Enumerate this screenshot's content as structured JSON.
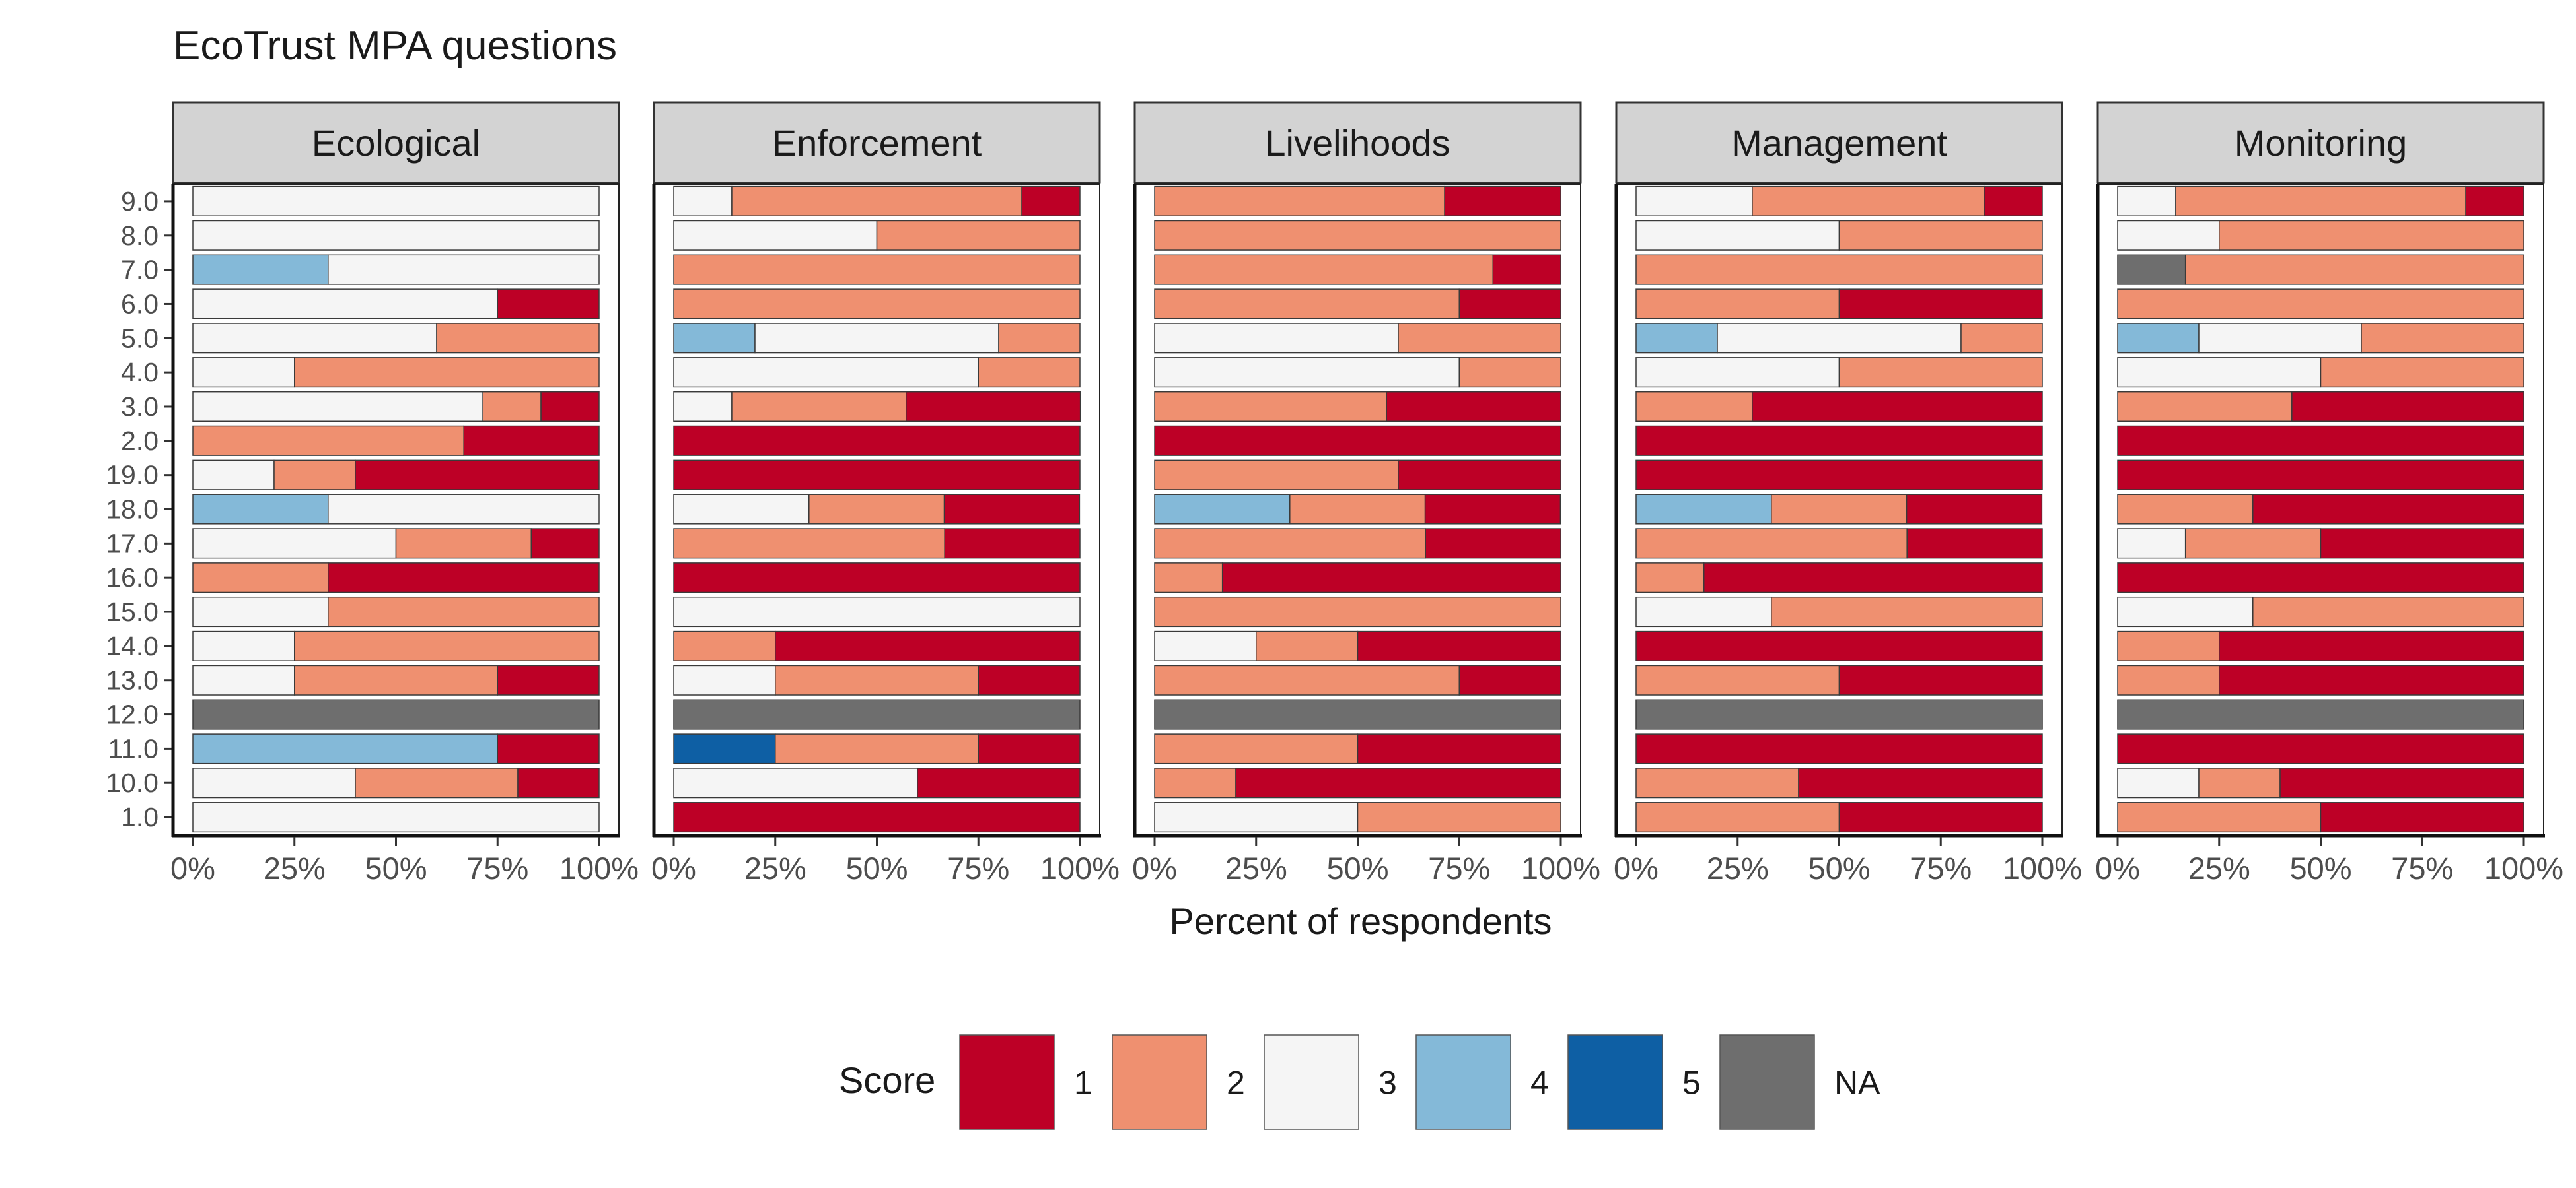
{
  "chart_data": {
    "type": "bar",
    "orientation": "horizontal-stacked-percent",
    "title": "EcoTrust MPA questions",
    "xlabel": "Percent of respondents",
    "ylabel": "",
    "xlim": [
      0,
      100
    ],
    "x_ticks": [
      "0%",
      "25%",
      "50%",
      "75%",
      "100%"
    ],
    "questions": [
      "9.0",
      "8.0",
      "7.0",
      "6.0",
      "5.0",
      "4.0",
      "3.0",
      "2.0",
      "19.0",
      "18.0",
      "17.0",
      "16.0",
      "15.0",
      "14.0",
      "13.0",
      "12.0",
      "11.0",
      "10.0",
      "1.0"
    ],
    "legend": {
      "title": "Score",
      "placement": "bottom",
      "entries": [
        {
          "key": "1",
          "label": "1",
          "color": "#bd0026"
        },
        {
          "key": "2",
          "label": "2",
          "color": "#ef9070"
        },
        {
          "key": "3",
          "label": "3",
          "color": "#f5f5f5"
        },
        {
          "key": "4",
          "label": "4",
          "color": "#84b9d8"
        },
        {
          "key": "5",
          "label": "5",
          "color": "#0e5fa4"
        },
        {
          "key": "NA",
          "label": "NA",
          "color": "#6e6e6e"
        }
      ]
    },
    "panels": [
      {
        "name": "Ecological",
        "rows": [
          {
            "q": "9.0",
            "s3": 100
          },
          {
            "q": "8.0",
            "s3": 100
          },
          {
            "q": "7.0",
            "s4": 33.3,
            "s3": 66.7
          },
          {
            "q": "6.0",
            "s3": 75,
            "s1": 25
          },
          {
            "q": "5.0",
            "s3": 60,
            "s2": 40
          },
          {
            "q": "4.0",
            "s3": 25,
            "s2": 75
          },
          {
            "q": "3.0",
            "s3": 71.4,
            "s2": 14.3,
            "s1": 14.3
          },
          {
            "q": "2.0",
            "s2": 66.7,
            "s1": 33.3
          },
          {
            "q": "19.0",
            "s3": 20,
            "s2": 20,
            "s1": 60
          },
          {
            "q": "18.0",
            "s4": 33.3,
            "s3": 66.7
          },
          {
            "q": "17.0",
            "s3": 50,
            "s2": 33.3,
            "s1": 16.7
          },
          {
            "q": "16.0",
            "s2": 33.3,
            "s1": 66.7
          },
          {
            "q": "15.0",
            "s3": 33.3,
            "s2": 66.7
          },
          {
            "q": "14.0",
            "s3": 25,
            "s2": 75
          },
          {
            "q": "13.0",
            "s3": 25,
            "s2": 50,
            "s1": 25
          },
          {
            "q": "12.0",
            "sNA": 100
          },
          {
            "q": "11.0",
            "s4": 75,
            "s1": 25
          },
          {
            "q": "10.0",
            "s3": 40,
            "s2": 40,
            "s1": 20
          },
          {
            "q": "1.0",
            "s3": 100
          }
        ]
      },
      {
        "name": "Enforcement",
        "rows": [
          {
            "q": "9.0",
            "s3": 14.3,
            "s2": 71.4,
            "s1": 14.3
          },
          {
            "q": "8.0",
            "s3": 50,
            "s2": 50
          },
          {
            "q": "7.0",
            "s2": 100
          },
          {
            "q": "6.0",
            "s2": 100
          },
          {
            "q": "5.0",
            "s4": 20,
            "s3": 60,
            "s2": 20
          },
          {
            "q": "4.0",
            "s3": 75,
            "s2": 25
          },
          {
            "q": "3.0",
            "s3": 14.3,
            "s2": 42.9,
            "s1": 42.9
          },
          {
            "q": "2.0",
            "s1": 100
          },
          {
            "q": "19.0",
            "s1": 100
          },
          {
            "q": "18.0",
            "s3": 33.3,
            "s2": 33.3,
            "s1": 33.3
          },
          {
            "q": "17.0",
            "s2": 66.7,
            "s1": 33.3
          },
          {
            "q": "16.0",
            "s1": 100
          },
          {
            "q": "15.0",
            "s3": 100
          },
          {
            "q": "14.0",
            "s2": 25,
            "s1": 75
          },
          {
            "q": "13.0",
            "s3": 25,
            "s2": 50,
            "s1": 25
          },
          {
            "q": "12.0",
            "sNA": 100
          },
          {
            "q": "11.0",
            "s5": 25,
            "s2": 50,
            "s1": 25
          },
          {
            "q": "10.0",
            "s3": 60,
            "s1": 40
          },
          {
            "q": "1.0",
            "s1": 100
          }
        ]
      },
      {
        "name": "Livelihoods",
        "rows": [
          {
            "q": "9.0",
            "s2": 71.4,
            "s1": 28.6
          },
          {
            "q": "8.0",
            "s2": 100
          },
          {
            "q": "7.0",
            "s2": 83.3,
            "s1": 16.7
          },
          {
            "q": "6.0",
            "s2": 75,
            "s1": 25
          },
          {
            "q": "5.0",
            "s3": 60,
            "s2": 40
          },
          {
            "q": "4.0",
            "s3": 75,
            "s2": 25
          },
          {
            "q": "3.0",
            "s2": 57.1,
            "s1": 42.9
          },
          {
            "q": "2.0",
            "s1": 100
          },
          {
            "q": "19.0",
            "s2": 60,
            "s1": 40
          },
          {
            "q": "18.0",
            "s4": 33.3,
            "s2": 33.3,
            "s1": 33.3
          },
          {
            "q": "17.0",
            "s2": 66.7,
            "s1": 33.3
          },
          {
            "q": "16.0",
            "s2": 16.7,
            "s1": 83.3
          },
          {
            "q": "15.0",
            "s2": 100
          },
          {
            "q": "14.0",
            "s3": 25,
            "s2": 25,
            "s1": 50
          },
          {
            "q": "13.0",
            "s2": 75,
            "s1": 25
          },
          {
            "q": "12.0",
            "sNA": 100
          },
          {
            "q": "11.0",
            "s2": 50,
            "s1": 50
          },
          {
            "q": "10.0",
            "s2": 20,
            "s1": 80
          },
          {
            "q": "1.0",
            "s3": 50,
            "s2": 50
          }
        ]
      },
      {
        "name": "Management",
        "rows": [
          {
            "q": "9.0",
            "s3": 28.6,
            "s2": 57.1,
            "s1": 14.3
          },
          {
            "q": "8.0",
            "s3": 50,
            "s2": 50
          },
          {
            "q": "7.0",
            "s2": 100
          },
          {
            "q": "6.0",
            "s2": 50,
            "s1": 50
          },
          {
            "q": "5.0",
            "s4": 20,
            "s3": 60,
            "s2": 20
          },
          {
            "q": "4.0",
            "s3": 50,
            "s2": 50
          },
          {
            "q": "3.0",
            "s2": 28.6,
            "s1": 71.4
          },
          {
            "q": "2.0",
            "s1": 100
          },
          {
            "q": "19.0",
            "s1": 100
          },
          {
            "q": "18.0",
            "s4": 33.3,
            "s2": 33.3,
            "s1": 33.3
          },
          {
            "q": "17.0",
            "s2": 66.7,
            "s1": 33.3
          },
          {
            "q": "16.0",
            "s2": 16.7,
            "s1": 83.3
          },
          {
            "q": "15.0",
            "s3": 33.3,
            "s2": 66.7
          },
          {
            "q": "14.0",
            "s1": 100
          },
          {
            "q": "13.0",
            "s2": 50,
            "s1": 50
          },
          {
            "q": "12.0",
            "sNA": 100
          },
          {
            "q": "11.0",
            "s1": 100
          },
          {
            "q": "10.0",
            "s2": 40,
            "s1": 60
          },
          {
            "q": "1.0",
            "s2": 50,
            "s1": 50
          }
        ]
      },
      {
        "name": "Monitoring",
        "rows": [
          {
            "q": "9.0",
            "s3": 14.3,
            "s2": 71.4,
            "s1": 14.3
          },
          {
            "q": "8.0",
            "s3": 25,
            "s2": 75
          },
          {
            "q": "7.0",
            "sNA": 16.7,
            "s2": 83.3
          },
          {
            "q": "6.0",
            "s2": 100
          },
          {
            "q": "5.0",
            "s4": 20,
            "s3": 40,
            "s2": 40
          },
          {
            "q": "4.0",
            "s3": 50,
            "s2": 50
          },
          {
            "q": "3.0",
            "s2": 42.9,
            "s1": 57.1
          },
          {
            "q": "2.0",
            "s1": 100
          },
          {
            "q": "19.0",
            "s1": 100
          },
          {
            "q": "18.0",
            "s2": 33.3,
            "s1": 66.7
          },
          {
            "q": "17.0",
            "s3": 16.7,
            "s2": 33.3,
            "s1": 50
          },
          {
            "q": "16.0",
            "s1": 100
          },
          {
            "q": "15.0",
            "s3": 33.3,
            "s2": 66.7
          },
          {
            "q": "14.0",
            "s2": 25,
            "s1": 75
          },
          {
            "q": "13.0",
            "s2": 25,
            "s1": 75
          },
          {
            "q": "12.0",
            "sNA": 100
          },
          {
            "q": "11.0",
            "s1": 100
          },
          {
            "q": "10.0",
            "s3": 20,
            "s2": 20,
            "s1": 60
          },
          {
            "q": "1.0",
            "s2": 50,
            "s1": 50
          }
        ]
      }
    ]
  }
}
